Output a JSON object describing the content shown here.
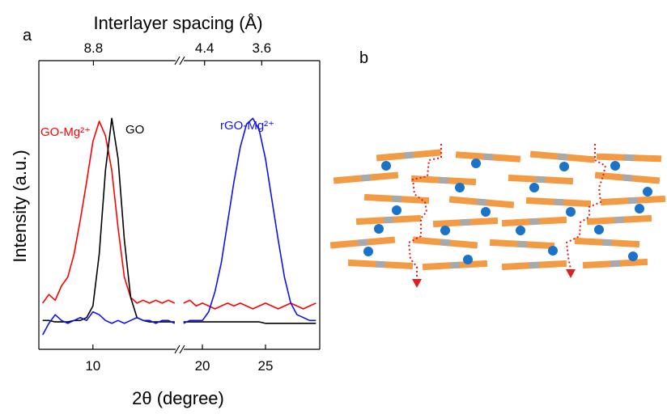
{
  "chart_data": {
    "type": "line",
    "panel_label": "a",
    "title": "Interlayer spacing (Å)",
    "xlabel": "2θ (degree)",
    "ylabel": "Intensity (a.u.)",
    "xlim": [
      5.7,
      29.3
    ],
    "x_break": [
      16.9,
      18.2
    ],
    "ylim": [
      0,
      100
    ],
    "xticks": [
      10,
      20,
      25
    ],
    "x2ticks": [
      {
        "value": 10.04,
        "label": "8.8"
      },
      {
        "value": 20.17,
        "label": "4.4"
      },
      {
        "value": 24.7,
        "label": "3.6"
      }
    ],
    "x": [
      6,
      6.5,
      7,
      7.5,
      8,
      8.5,
      9,
      9.5,
      10,
      10.5,
      11,
      11.5,
      12,
      12.5,
      13,
      13.5,
      14,
      14.5,
      15,
      15.5,
      16,
      16.5,
      17.5,
      18.5,
      19,
      19.5,
      20,
      20.5,
      21,
      21.5,
      22,
      22.5,
      23,
      23.5,
      24,
      24.5,
      25,
      25.5,
      26,
      26.5,
      27,
      27.5,
      28,
      28.5,
      29
    ],
    "series": [
      {
        "name": "GO-Mg²⁺",
        "color": "#ff0000",
        "values": [
          16,
          19,
          17,
          22,
          25,
          33,
          45,
          58,
          72,
          79,
          74,
          62,
          42,
          25,
          18,
          16,
          17,
          16,
          17,
          16,
          17,
          16,
          null,
          16,
          17,
          15,
          16,
          15,
          14,
          15,
          16,
          15,
          16,
          15,
          14,
          15,
          16,
          15,
          14,
          15,
          16,
          15,
          14,
          15,
          16
        ]
      },
      {
        "name": "GO",
        "color": "#000000",
        "values": [
          10,
          10,
          9.5,
          9.5,
          9.5,
          10,
          10,
          11,
          15,
          33,
          62,
          80,
          66,
          38,
          18,
          11,
          10,
          9.5,
          9.5,
          9.5,
          9.5,
          9.5,
          null,
          9.5,
          9.5,
          9.5,
          9.5,
          9.5,
          9.5,
          9.5,
          9.5,
          9.5,
          9.5,
          9.5,
          9.5,
          9.5,
          9,
          9,
          9,
          9,
          9,
          9,
          9,
          9,
          9
        ]
      },
      {
        "name": "rGO-Mg²⁺",
        "color": "#1010ee",
        "values": [
          5,
          9,
          12,
          10,
          9,
          10,
          11,
          10,
          13,
          12,
          10,
          9,
          10,
          9,
          10,
          11,
          10,
          10,
          9,
          10,
          10,
          9,
          null,
          9,
          10,
          10,
          10,
          13,
          20,
          30,
          44,
          58,
          70,
          78,
          80,
          76,
          66,
          52,
          38,
          25,
          16,
          12,
          11,
          10,
          10
        ]
      }
    ]
  },
  "diagram": {
    "panel_label": "b"
  }
}
